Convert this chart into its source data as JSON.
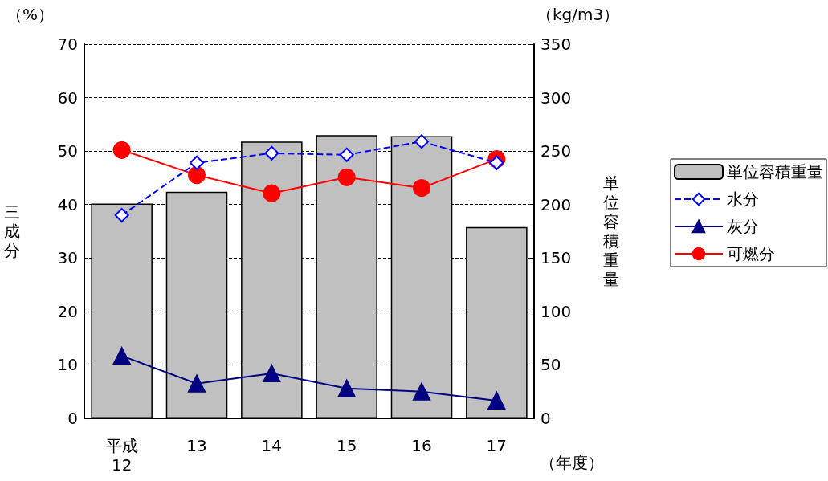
{
  "chart_data": {
    "type": "bar",
    "ylabel": "三成分",
    "y2label": "単位容積重量",
    "annotations": [
      "（%）",
      "（kg/m3）",
      "（年度）"
    ],
    "categories": [
      "平成\n12",
      "13",
      "14",
      "15",
      "16",
      "17"
    ],
    "series": [
      {
        "name": "単位容積重量",
        "axis": "y2",
        "color": "#c0c0c0",
        "values": [
          201,
          212,
          259,
          265,
          264,
          179
        ]
      },
      {
        "name": "水分",
        "type": "line",
        "color": "#0000ff",
        "marker": "diamond",
        "line_style": "dashed",
        "values": [
          38,
          47.8,
          49.6,
          49.3,
          51.8,
          47.8
        ]
      },
      {
        "name": "灰分",
        "type": "line",
        "color": "#000080",
        "marker": "triangle",
        "line_style": "solid",
        "values": [
          11.7,
          6.5,
          8.4,
          5.6,
          5,
          3.3
        ]
      },
      {
        "name": "可燃分",
        "type": "line",
        "color": "#ff0000",
        "marker": "circle",
        "line_style": "solid",
        "values": [
          50.2,
          45.5,
          42.1,
          45.1,
          43.1,
          48.5
        ]
      }
    ],
    "ylim": [
      0,
      70
    ],
    "yticks": [
      0,
      10,
      20,
      30,
      40,
      50,
      60,
      70
    ],
    "y2lim": [
      0,
      350
    ],
    "y2ticks": [
      0,
      50,
      100,
      150,
      200,
      250,
      300,
      350
    ],
    "grid": "y",
    "legend": "right"
  }
}
